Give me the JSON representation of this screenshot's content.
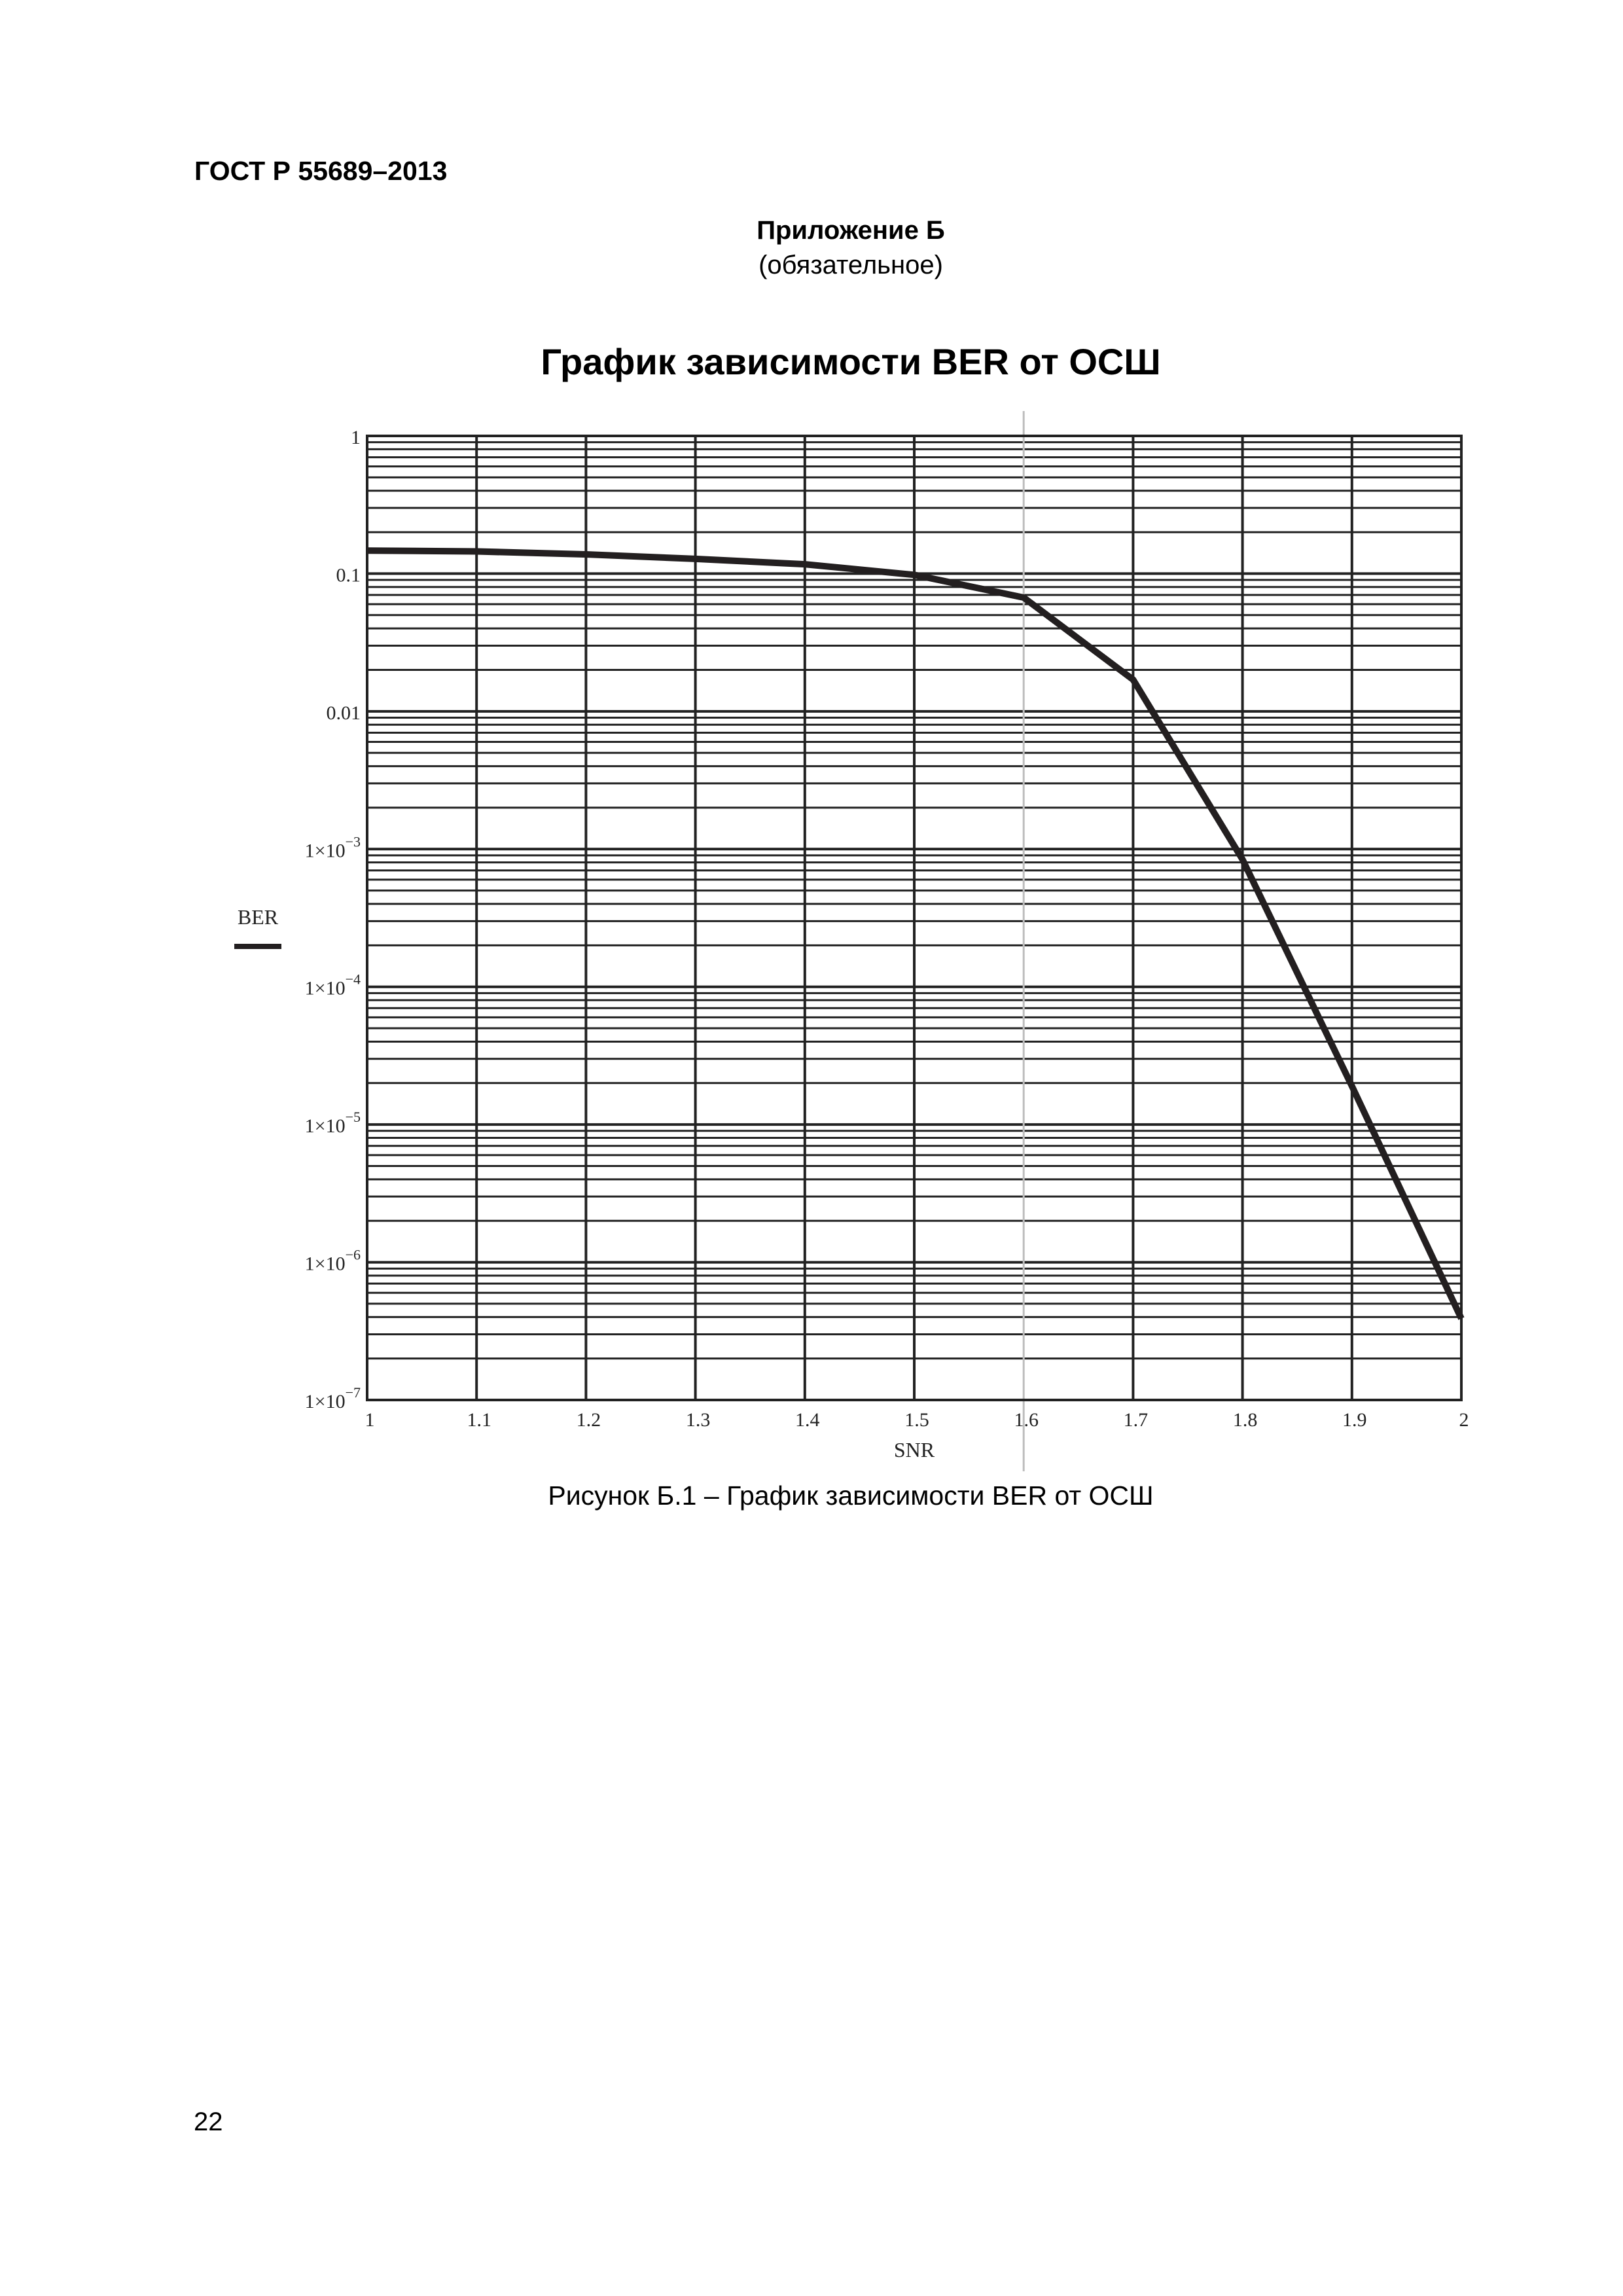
{
  "header": {
    "document_code": "ГОСТ Р 55689–2013"
  },
  "annex": {
    "title": "Приложение Б",
    "status": "(обязательное)"
  },
  "figure": {
    "title": "График зависимости BER от ОСШ",
    "caption": "Рисунок Б.1 – График зависимости BER от ОСШ"
  },
  "footer": {
    "page_number": "22"
  },
  "colors": {
    "grid": "#222222",
    "curve": "#231f20",
    "cursor_line": "#bdbdbd"
  },
  "chart_data": {
    "type": "line",
    "title": "График зависимости BER от ОСШ",
    "xlabel": "SNR",
    "ylabel": "BER",
    "xscale": "linear",
    "yscale": "log",
    "xlim": [
      1,
      2
    ],
    "ylim": [
      1e-07,
      1
    ],
    "grid": true,
    "legend": [
      {
        "name": "BER",
        "style": "solid thick black"
      }
    ],
    "x_ticks": [
      "1",
      "1.1",
      "1.2",
      "1.3",
      "1.4",
      "1.5",
      "1.6",
      "1.7",
      "1.8",
      "1.9",
      "2"
    ],
    "y_ticks": [
      "1",
      "0.1",
      "0.01",
      "1×10⁻³",
      "1×10⁻⁴",
      "1×10⁻⁵",
      "1×10⁻⁶",
      "1×10⁻⁷"
    ],
    "y_tick_parts": [
      {
        "base": "1",
        "exp": ""
      },
      {
        "base": "0.1",
        "exp": ""
      },
      {
        "base": "0.01",
        "exp": ""
      },
      {
        "base": "1×10",
        "exp": "−3"
      },
      {
        "base": "1×10",
        "exp": "−4"
      },
      {
        "base": "1×10",
        "exp": "−5"
      },
      {
        "base": "1×10",
        "exp": "−6"
      },
      {
        "base": "1×10",
        "exp": "−7"
      }
    ],
    "annotations": [
      {
        "type": "vertical-marker",
        "x": 1.6
      }
    ],
    "series": [
      {
        "name": "BER",
        "x": [
          1.0,
          1.1,
          1.2,
          1.3,
          1.4,
          1.5,
          1.6,
          1.7,
          1.8,
          1.9,
          2.0
        ],
        "values": [
          0.147,
          0.145,
          0.138,
          0.128,
          0.117,
          0.098,
          0.067,
          0.017,
          0.00084,
          1.9e-05,
          3.9e-07
        ]
      }
    ]
  }
}
